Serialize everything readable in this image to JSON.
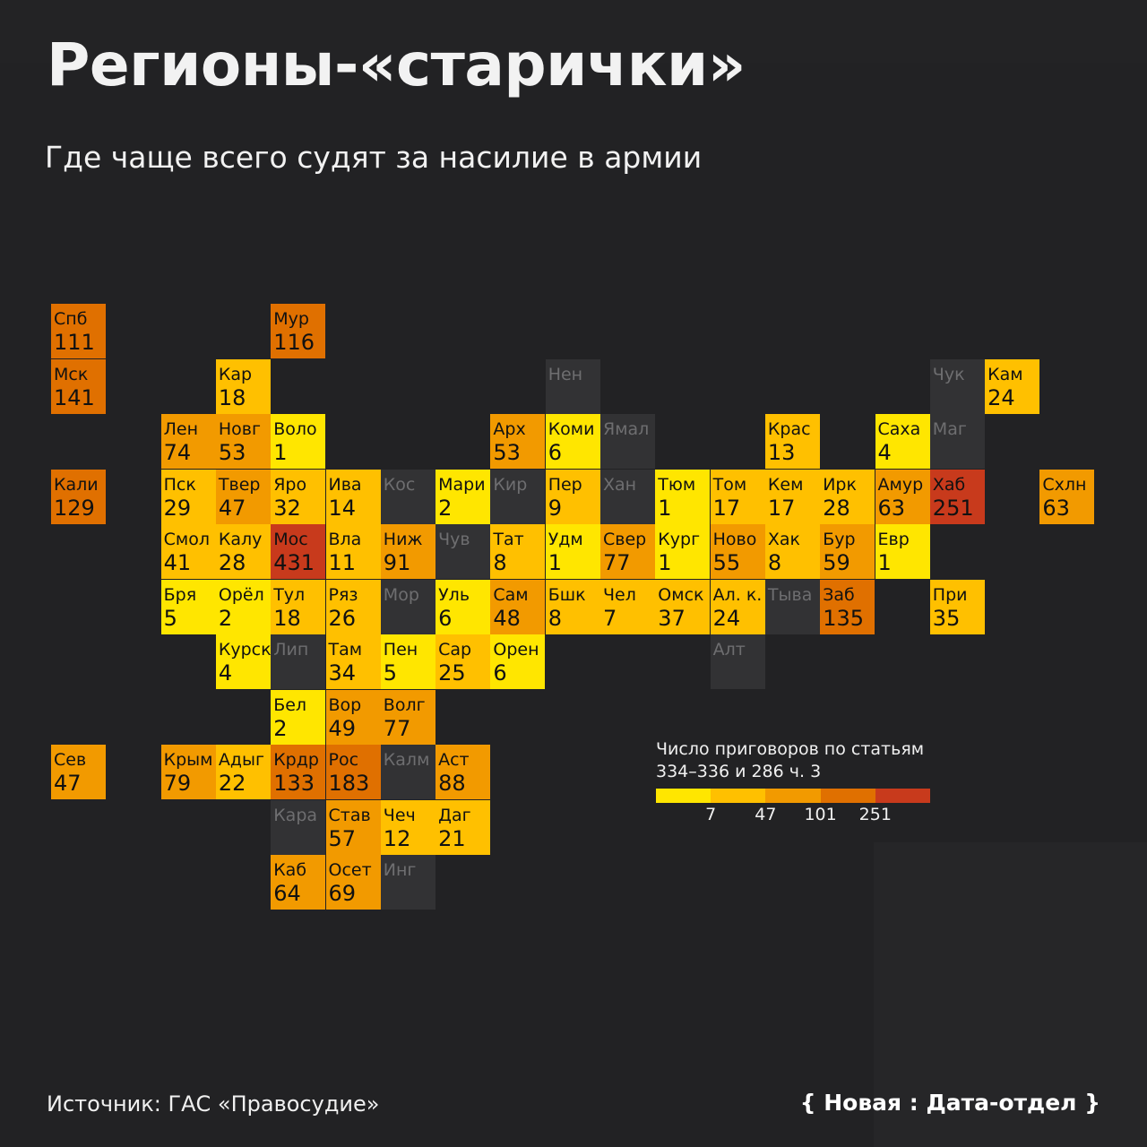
{
  "title": "Регионы-«старички»",
  "subtitle": "Где чаще всего судят за насилие в армии",
  "legend": {
    "title_line1": "Число приговоров по статьям",
    "title_line2": "334–336 и 286 ч. 3",
    "colors": [
      "#ffe600",
      "#ffc000",
      "#f29a00",
      "#e07000",
      "#c83a1c"
    ],
    "breaks": [
      "7",
      "47",
      "101",
      "251"
    ]
  },
  "source": "Источник: ГАС «Правосудие»",
  "logo": "{ Новая : Дата-отдел }",
  "regions": [
    {
      "abbr": "Спб",
      "value": "111",
      "row": 0,
      "col": 0
    },
    {
      "abbr": "Мур",
      "value": "116",
      "row": 0,
      "col": 4
    },
    {
      "abbr": "Мск",
      "value": "141",
      "row": 1,
      "col": 0
    },
    {
      "abbr": "Кар",
      "value": "18",
      "row": 1,
      "col": 3
    },
    {
      "abbr": "Нен",
      "value": null,
      "row": 1,
      "col": 9
    },
    {
      "abbr": "Чук",
      "value": null,
      "row": 1,
      "col": 16
    },
    {
      "abbr": "Кам",
      "value": "24",
      "row": 1,
      "col": 17
    },
    {
      "abbr": "Лен",
      "value": "74",
      "row": 2,
      "col": 2
    },
    {
      "abbr": "Новг",
      "value": "53",
      "row": 2,
      "col": 3
    },
    {
      "abbr": "Воло",
      "value": "1",
      "row": 2,
      "col": 4
    },
    {
      "abbr": "Арх",
      "value": "53",
      "row": 2,
      "col": 8
    },
    {
      "abbr": "Коми",
      "value": "6",
      "row": 2,
      "col": 9
    },
    {
      "abbr": "Ямал",
      "value": null,
      "row": 2,
      "col": 10
    },
    {
      "abbr": "Крас",
      "value": "13",
      "row": 2,
      "col": 13
    },
    {
      "abbr": "Саха",
      "value": "4",
      "row": 2,
      "col": 15
    },
    {
      "abbr": "Маг",
      "value": null,
      "row": 2,
      "col": 16
    },
    {
      "abbr": "Кали",
      "value": "129",
      "row": 3,
      "col": 0
    },
    {
      "abbr": "Пск",
      "value": "29",
      "row": 3,
      "col": 2
    },
    {
      "abbr": "Твер",
      "value": "47",
      "row": 3,
      "col": 3
    },
    {
      "abbr": "Яро",
      "value": "32",
      "row": 3,
      "col": 4
    },
    {
      "abbr": "Ива",
      "value": "14",
      "row": 3,
      "col": 5
    },
    {
      "abbr": "Кос",
      "value": null,
      "row": 3,
      "col": 6
    },
    {
      "abbr": "Мари",
      "value": "2",
      "row": 3,
      "col": 7
    },
    {
      "abbr": "Кир",
      "value": null,
      "row": 3,
      "col": 8
    },
    {
      "abbr": "Пер",
      "value": "9",
      "row": 3,
      "col": 9
    },
    {
      "abbr": "Хан",
      "value": null,
      "row": 3,
      "col": 10
    },
    {
      "abbr": "Тюм",
      "value": "1",
      "row": 3,
      "col": 11
    },
    {
      "abbr": "Том",
      "value": "17",
      "row": 3,
      "col": 12
    },
    {
      "abbr": "Кем",
      "value": "17",
      "row": 3,
      "col": 13
    },
    {
      "abbr": "Ирк",
      "value": "28",
      "row": 3,
      "col": 14
    },
    {
      "abbr": "Амур",
      "value": "63",
      "row": 3,
      "col": 15
    },
    {
      "abbr": "Хаб",
      "value": "251",
      "row": 3,
      "col": 16
    },
    {
      "abbr": "Схлн",
      "value": "63",
      "row": 3,
      "col": 18
    },
    {
      "abbr": "Смол",
      "value": "41",
      "row": 4,
      "col": 2
    },
    {
      "abbr": "Калу",
      "value": "28",
      "row": 4,
      "col": 3
    },
    {
      "abbr": "Мос",
      "value": "431",
      "row": 4,
      "col": 4
    },
    {
      "abbr": "Вла",
      "value": "11",
      "row": 4,
      "col": 5
    },
    {
      "abbr": "Ниж",
      "value": "91",
      "row": 4,
      "col": 6
    },
    {
      "abbr": "Чув",
      "value": null,
      "row": 4,
      "col": 7
    },
    {
      "abbr": "Тат",
      "value": "8",
      "row": 4,
      "col": 8
    },
    {
      "abbr": "Удм",
      "value": "1",
      "row": 4,
      "col": 9
    },
    {
      "abbr": "Свер",
      "value": "77",
      "row": 4,
      "col": 10
    },
    {
      "abbr": "Кург",
      "value": "1",
      "row": 4,
      "col": 11
    },
    {
      "abbr": "Ново",
      "value": "55",
      "row": 4,
      "col": 12
    },
    {
      "abbr": "Хак",
      "value": "8",
      "row": 4,
      "col": 13
    },
    {
      "abbr": "Бур",
      "value": "59",
      "row": 4,
      "col": 14
    },
    {
      "abbr": "Евр",
      "value": "1",
      "row": 4,
      "col": 15
    },
    {
      "abbr": "Бря",
      "value": "5",
      "row": 5,
      "col": 2
    },
    {
      "abbr": "Орёл",
      "value": "2",
      "row": 5,
      "col": 3
    },
    {
      "abbr": "Тул",
      "value": "18",
      "row": 5,
      "col": 4
    },
    {
      "abbr": "Ряз",
      "value": "26",
      "row": 5,
      "col": 5
    },
    {
      "abbr": "Мор",
      "value": null,
      "row": 5,
      "col": 6
    },
    {
      "abbr": "Уль",
      "value": "6",
      "row": 5,
      "col": 7
    },
    {
      "abbr": "Сам",
      "value": "48",
      "row": 5,
      "col": 8
    },
    {
      "abbr": "Бшк",
      "value": "8",
      "row": 5,
      "col": 9
    },
    {
      "abbr": "Чел",
      "value": "7",
      "row": 5,
      "col": 10
    },
    {
      "abbr": "Омск",
      "value": "37",
      "row": 5,
      "col": 11
    },
    {
      "abbr": "Ал. к.",
      "value": "24",
      "row": 5,
      "col": 12
    },
    {
      "abbr": "Тыва",
      "value": null,
      "row": 5,
      "col": 13
    },
    {
      "abbr": "Заб",
      "value": "135",
      "row": 5,
      "col": 14
    },
    {
      "abbr": "При",
      "value": "35",
      "row": 5,
      "col": 16
    },
    {
      "abbr": "Курск",
      "value": "4",
      "row": 6,
      "col": 3
    },
    {
      "abbr": "Лип",
      "value": null,
      "row": 6,
      "col": 4
    },
    {
      "abbr": "Там",
      "value": "34",
      "row": 6,
      "col": 5
    },
    {
      "abbr": "Пен",
      "value": "5",
      "row": 6,
      "col": 6
    },
    {
      "abbr": "Сар",
      "value": "25",
      "row": 6,
      "col": 7
    },
    {
      "abbr": "Орен",
      "value": "6",
      "row": 6,
      "col": 8
    },
    {
      "abbr": "Алт",
      "value": null,
      "row": 6,
      "col": 12
    },
    {
      "abbr": "Бел",
      "value": "2",
      "row": 7,
      "col": 4
    },
    {
      "abbr": "Вор",
      "value": "49",
      "row": 7,
      "col": 5
    },
    {
      "abbr": "Волг",
      "value": "77",
      "row": 7,
      "col": 6
    },
    {
      "abbr": "Сев",
      "value": "47",
      "row": 8,
      "col": 0
    },
    {
      "abbr": "Крым",
      "value": "79",
      "row": 8,
      "col": 2
    },
    {
      "abbr": "Адыг",
      "value": "22",
      "row": 8,
      "col": 3
    },
    {
      "abbr": "Крдр",
      "value": "133",
      "row": 8,
      "col": 4
    },
    {
      "abbr": "Рос",
      "value": "183",
      "row": 8,
      "col": 5
    },
    {
      "abbr": "Калм",
      "value": null,
      "row": 8,
      "col": 6
    },
    {
      "abbr": "Аст",
      "value": "88",
      "row": 8,
      "col": 7
    },
    {
      "abbr": "Кара",
      "value": null,
      "row": 9,
      "col": 4
    },
    {
      "abbr": "Став",
      "value": "57",
      "row": 9,
      "col": 5
    },
    {
      "abbr": "Чеч",
      "value": "12",
      "row": 9,
      "col": 6
    },
    {
      "abbr": "Даг",
      "value": "21",
      "row": 9,
      "col": 7
    },
    {
      "abbr": "Каб",
      "value": "64",
      "row": 10,
      "col": 4
    },
    {
      "abbr": "Осет",
      "value": "69",
      "row": 10,
      "col": 5
    },
    {
      "abbr": "Инг",
      "value": null,
      "row": 10,
      "col": 6
    }
  ]
}
